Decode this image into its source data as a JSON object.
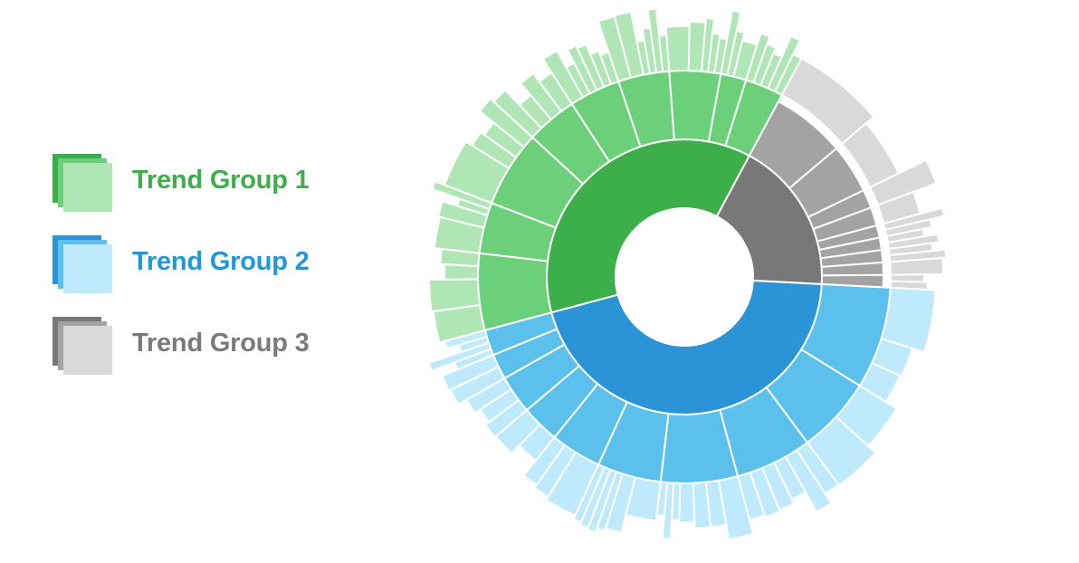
{
  "legend": {
    "items": [
      {
        "label": "Trend Group 1",
        "text_color": "#3daf4a",
        "colors": [
          "#3daf4a",
          "#6ccf79",
          "#b0e6b6"
        ]
      },
      {
        "label": "Trend Group 2",
        "text_color": "#1f97d9",
        "colors": [
          "#2b94d6",
          "#5bc0ec",
          "#bfeafd"
        ]
      },
      {
        "label": "Trend Group 3",
        "text_color": "#7a7a7a",
        "colors": [
          "#787878",
          "#a3a3a3",
          "#d9d9d9"
        ]
      }
    ]
  },
  "chart_data": {
    "type": "sunburst",
    "title": "",
    "rings": 3,
    "groups": [
      {
        "name": "Trend Group 1",
        "colors": [
          "#3daf4a",
          "#6ccf79",
          "#b0e6b6"
        ],
        "value": 37,
        "children": [
          {
            "value": 6,
            "children": [
              {
                "value": 5,
                "leaves": [
                  2,
                  2,
                  1
                ]
              },
              {
                "value": 1,
                "leaves": [
                  1
                ]
              }
            ]
          },
          {
            "value": 4,
            "children": [
              {
                "value": 2,
                "leaves": [
                  2
                ]
              },
              {
                "value": 2,
                "leaves": [
                  1,
                  0.5,
                  0.5
                ]
              }
            ]
          },
          {
            "value": 6,
            "children": [
              {
                "value": 4,
                "leaves": [
                  3,
                  1
                ]
              },
              {
                "value": 2,
                "leaves": [
                  1,
                  1
                ]
              }
            ]
          },
          {
            "value": 4,
            "children": [
              {
                "value": 4,
                "leaves": [
                  1,
                  1,
                  1,
                  1
                ]
              }
            ]
          },
          {
            "value": 4,
            "children": [
              {
                "value": 4,
                "leaves": [
                  1,
                  0.6,
                  0.6,
                  0.6,
                  0.6,
                  0.6
                ]
              }
            ]
          },
          {
            "value": 4,
            "children": [
              {
                "value": 4,
                "leaves": [
                  1,
                  1,
                  0.5,
                  0.5,
                  0.5,
                  0.5
                ]
              }
            ]
          },
          {
            "value": 4,
            "children": [
              {
                "value": 4,
                "leaves": [
                  1.5,
                  1,
                  0.5,
                  0.5,
                  0.5
                ]
              }
            ]
          },
          {
            "value": 2,
            "children": [
              {
                "value": 1,
                "leaves": [
                  0.5,
                  0.5
                ]
              },
              {
                "value": 1,
                "leaves": [
                  1
                ]
              }
            ]
          },
          {
            "value": 3,
            "children": [
              {
                "value": 3,
                "leaves": [
                  0.6,
                  0.6,
                  0.6,
                  0.6,
                  0.6
                ]
              }
            ]
          }
        ]
      },
      {
        "name": "Trend Group 3",
        "colors": [
          "#787878",
          "#a3a3a3",
          "#d9d9d9"
        ],
        "value": 18,
        "children": [
          {
            "value": 6,
            "leaves": [
              6
            ]
          },
          {
            "value": 4,
            "leaves": [
              4
            ]
          },
          {
            "value": 1.5,
            "leaves": [
              1.5
            ]
          },
          {
            "value": 1.5,
            "leaves": [
              1.5
            ]
          },
          {
            "value": 1,
            "leaves": [
              0.5,
              0.5
            ]
          },
          {
            "value": 1,
            "leaves": [
              0.5,
              0.5
            ]
          },
          {
            "value": 1,
            "leaves": [
              0.5,
              0.5
            ]
          },
          {
            "value": 1,
            "leaves": [
              1
            ]
          },
          {
            "value": 1,
            "leaves": [
              0.5,
              0.5
            ]
          }
        ]
      },
      {
        "name": "Trend Group 2",
        "colors": [
          "#2b94d6",
          "#5bc0ec",
          "#bfeafd"
        ],
        "value": 45,
        "children": [
          {
            "value": 8,
            "children": [
              {
                "value": 8,
                "leaves": [
                  4,
                  2,
                  2
                ]
              }
            ]
          },
          {
            "value": 6,
            "children": [
              {
                "value": 3,
                "leaves": [
                  3
                ]
              },
              {
                "value": 3,
                "leaves": [
                  3
                ]
              }
            ]
          },
          {
            "value": 6,
            "children": [
              {
                "value": 6,
                "leaves": [
                  1,
                  1,
                  1,
                  1,
                  1,
                  1
                ]
              }
            ]
          },
          {
            "value": 6,
            "children": [
              {
                "value": 6,
                "leaves": [
                  1.5,
                  1,
                  1,
                  1,
                  0.5,
                  0.5,
                  0.5
                ]
              }
            ]
          },
          {
            "value": 5,
            "children": [
              {
                "value": 5,
                "leaves": [
                  2,
                  1,
                  0.5,
                  0.5,
                  0.5,
                  0.5
                ]
              }
            ]
          },
          {
            "value": 4,
            "children": [
              {
                "value": 4,
                "leaves": [
                  2,
                  1,
                  1
                ]
              }
            ]
          },
          {
            "value": 3,
            "children": [
              {
                "value": 3,
                "leaves": [
                  1.5,
                  1.5
                ]
              }
            ]
          },
          {
            "value": 3,
            "children": [
              {
                "value": 3,
                "leaves": [
                  1,
                  1,
                  1
                ]
              }
            ]
          },
          {
            "value": 2,
            "children": [
              {
                "value": 2,
                "leaves": [
                  1,
                  1
                ]
              }
            ]
          },
          {
            "value": 2,
            "children": [
              {
                "value": 2,
                "leaves": [
                  0.5,
                  0.5,
                  0.5,
                  0.5
                ]
              }
            ]
          }
        ]
      }
    ]
  }
}
